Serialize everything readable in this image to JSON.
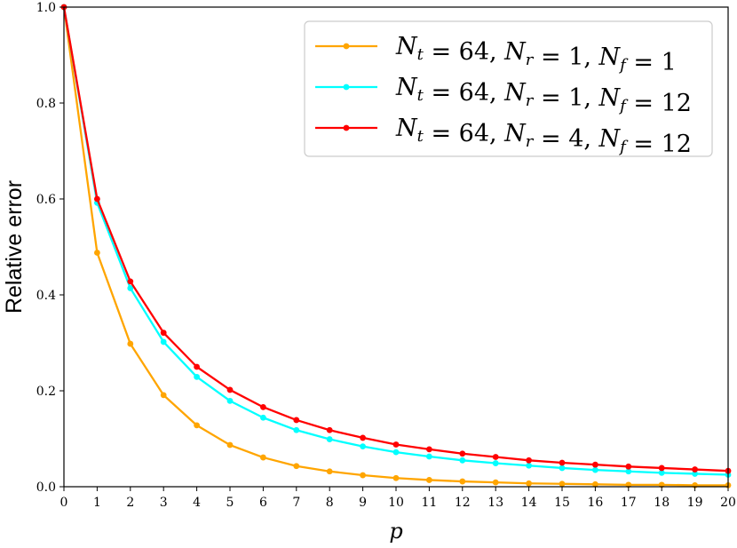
{
  "chart_data": {
    "type": "line",
    "title": "",
    "xlabel": "p",
    "ylabel": "Relative error",
    "xlim": [
      0,
      20
    ],
    "ylim": [
      0,
      1.0
    ],
    "x": [
      0,
      1,
      2,
      3,
      4,
      5,
      6,
      7,
      8,
      9,
      10,
      11,
      12,
      13,
      14,
      15,
      16,
      17,
      18,
      19,
      20
    ],
    "xticks": [
      "0",
      "1",
      "2",
      "3",
      "4",
      "5",
      "6",
      "7",
      "8",
      "9",
      "10",
      "11",
      "12",
      "13",
      "14",
      "15",
      "16",
      "17",
      "18",
      "19",
      "20"
    ],
    "yticks": [
      "0.0",
      "0.2",
      "0.4",
      "0.6",
      "0.8",
      "1.0"
    ],
    "grid": false,
    "legend_position": "top-right",
    "series": [
      {
        "name": "N_t = 64, N_r = 1, N_f = 1",
        "legend": {
          "nt": "64",
          "nr": "1",
          "nf": "1"
        },
        "color": "#FFA500",
        "values": [
          1.0,
          0.488,
          0.298,
          0.191,
          0.128,
          0.087,
          0.061,
          0.043,
          0.032,
          0.024,
          0.018,
          0.014,
          0.011,
          0.009,
          0.007,
          0.006,
          0.005,
          0.004,
          0.004,
          0.003,
          0.003
        ]
      },
      {
        "name": "N_t = 64, N_r = 1, N_f = 12",
        "legend": {
          "nt": "64",
          "nr": "1",
          "nf": "12"
        },
        "color": "#00FFFF",
        "values": [
          1.0,
          0.592,
          0.414,
          0.302,
          0.229,
          0.179,
          0.144,
          0.118,
          0.099,
          0.084,
          0.072,
          0.063,
          0.055,
          0.049,
          0.044,
          0.039,
          0.035,
          0.032,
          0.029,
          0.027,
          0.025
        ]
      },
      {
        "name": "N_t = 64, N_r = 4, N_f = 12",
        "legend": {
          "nt": "64",
          "nr": "4",
          "nf": "12"
        },
        "color": "#FF0000",
        "values": [
          1.0,
          0.6,
          0.428,
          0.321,
          0.25,
          0.202,
          0.166,
          0.139,
          0.118,
          0.102,
          0.088,
          0.078,
          0.069,
          0.062,
          0.055,
          0.05,
          0.046,
          0.042,
          0.039,
          0.036,
          0.033
        ]
      }
    ]
  }
}
